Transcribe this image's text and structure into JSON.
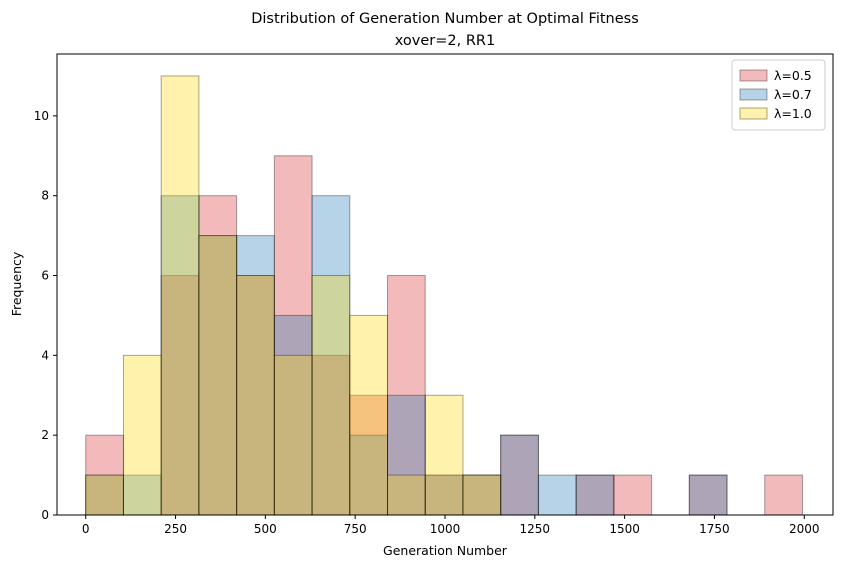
{
  "chart_data": {
    "type": "bar",
    "title": "Distribution of Generation Number at Optimal Fitness",
    "subtitle": "xover=2, RR1",
    "xlabel": "Generation Number",
    "ylabel": "Frequency",
    "xlim": [
      -80,
      2080
    ],
    "ylim": [
      0,
      11.55
    ],
    "xticks": [
      0,
      250,
      500,
      750,
      1000,
      1250,
      1500,
      1750,
      2000
    ],
    "yticks": [
      0,
      2,
      4,
      6,
      8,
      10
    ],
    "grid": false,
    "legend_position": "top-right",
    "bin_edges": [
      0,
      105,
      210,
      315,
      420,
      525,
      630,
      735,
      840,
      945,
      1050,
      1155,
      1260,
      1365,
      1470,
      1575,
      1680,
      1785,
      1890,
      1995
    ],
    "series": [
      {
        "name": "λ=0.5",
        "color": "#d62728",
        "values": [
          2,
          0,
          6,
          8,
          6,
          9,
          4,
          3,
          6,
          1,
          1,
          2,
          0,
          1,
          1,
          0,
          1,
          0,
          1
        ]
      },
      {
        "name": "λ=0.7",
        "color": "#1f77b4",
        "values": [
          1,
          1,
          8,
          7,
          7,
          5,
          8,
          2,
          3,
          1,
          1,
          2,
          1,
          1,
          0,
          0,
          1,
          0,
          0
        ]
      },
      {
        "name": "λ=1.0",
        "color": "#ffd700",
        "values": [
          1,
          4,
          11,
          7,
          6,
          4,
          6,
          5,
          1,
          3,
          1,
          0,
          0,
          0,
          0,
          0,
          0,
          0,
          0
        ]
      }
    ]
  }
}
